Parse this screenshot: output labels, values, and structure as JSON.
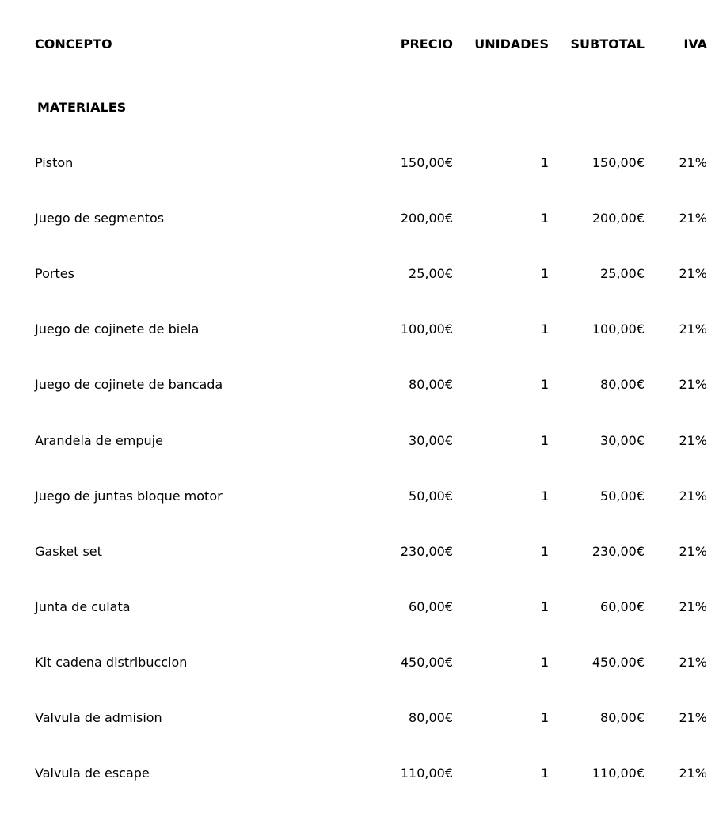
{
  "header": {
    "concepto": "CONCEPTO",
    "precio": "PRECIO",
    "unidades": "UNIDADES",
    "subtotal": "SUBTOTAL",
    "iva": "IVA"
  },
  "section_title": "MATERIALES",
  "rows": [
    {
      "concepto": "Piston",
      "precio": "150,00€",
      "unidades": "1",
      "subtotal": "150,00€",
      "iva": "21%"
    },
    {
      "concepto": "Juego de segmentos",
      "precio": "200,00€",
      "unidades": "1",
      "subtotal": "200,00€",
      "iva": "21%"
    },
    {
      "concepto": "Portes",
      "precio": "25,00€",
      "unidades": "1",
      "subtotal": "25,00€",
      "iva": "21%"
    },
    {
      "concepto": "Juego de cojinete de biela",
      "precio": "100,00€",
      "unidades": "1",
      "subtotal": "100,00€",
      "iva": "21%"
    },
    {
      "concepto": "Juego de cojinete de bancada",
      "precio": "80,00€",
      "unidades": "1",
      "subtotal": "80,00€",
      "iva": "21%"
    },
    {
      "concepto": "Arandela de empuje",
      "precio": "30,00€",
      "unidades": "1",
      "subtotal": "30,00€",
      "iva": "21%"
    },
    {
      "concepto": "Juego de juntas bloque motor",
      "precio": "50,00€",
      "unidades": "1",
      "subtotal": "50,00€",
      "iva": "21%"
    },
    {
      "concepto": "Gasket set",
      "precio": "230,00€",
      "unidades": "1",
      "subtotal": "230,00€",
      "iva": "21%"
    },
    {
      "concepto": "Junta de culata",
      "precio": "60,00€",
      "unidades": "1",
      "subtotal": "60,00€",
      "iva": "21%"
    },
    {
      "concepto": "Kit cadena distribuccion",
      "precio": "450,00€",
      "unidades": "1",
      "subtotal": "450,00€",
      "iva": "21%"
    },
    {
      "concepto": "Valvula de admision",
      "precio": "80,00€",
      "unidades": "1",
      "subtotal": "80,00€",
      "iva": "21%"
    },
    {
      "concepto": "Valvula de escape",
      "precio": "110,00€",
      "unidades": "1",
      "subtotal": "110,00€",
      "iva": "21%"
    }
  ]
}
